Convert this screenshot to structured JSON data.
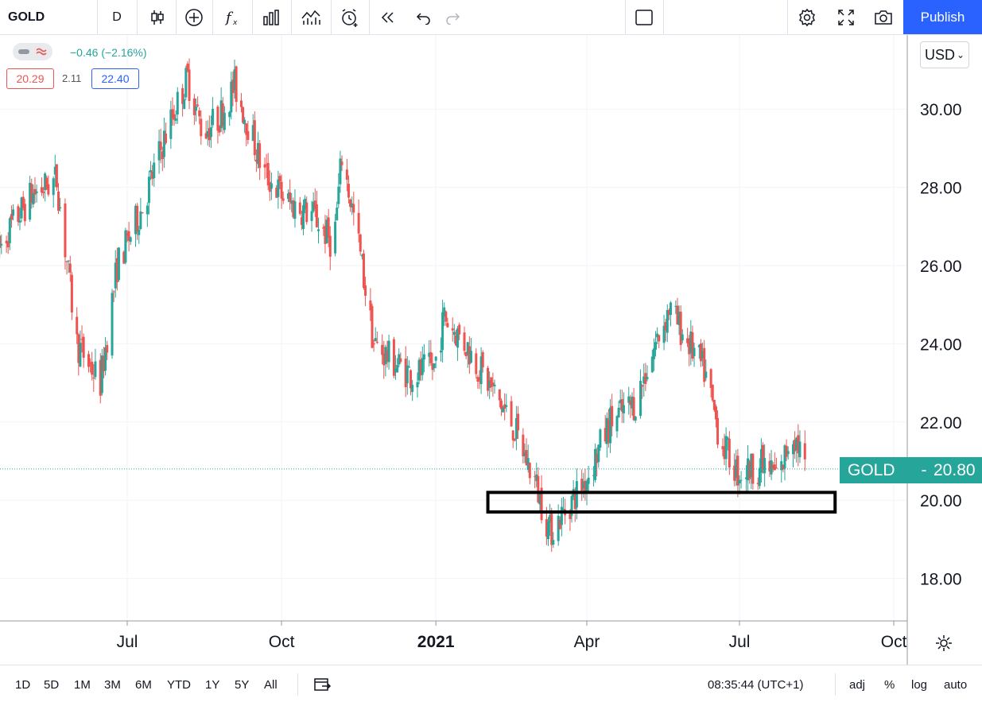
{
  "toolbar": {
    "symbol": "GOLD",
    "interval": "D",
    "icons": [
      "candles-icon",
      "add-indicator-icon",
      "fx-icon",
      "bar-chart-icon",
      "compare-icon",
      "alert-icon",
      "replay-icon",
      "undo-icon",
      "redo-icon",
      "layout-icon",
      "gear-icon",
      "fullscreen-icon",
      "camera-icon"
    ],
    "publish_label": "Publish"
  },
  "legend": {
    "change": "−0.46 (−2.16%)",
    "low": "20.29",
    "range": "2.11",
    "high": "22.40"
  },
  "currency": "USD",
  "price_tag": {
    "name": "GOLD",
    "dash": "-",
    "value": "20.80"
  },
  "bottombar": {
    "ranges": [
      "1D",
      "5D",
      "1M",
      "3M",
      "6M",
      "YTD",
      "1Y",
      "5Y",
      "All"
    ],
    "time": "08:35:44 (UTC+1)",
    "options": [
      "adj",
      "%",
      "log",
      "auto"
    ]
  },
  "colors": {
    "up": "#26a69a",
    "down": "#ef5350",
    "accent": "#2962ff"
  },
  "chart_data": {
    "type": "candlestick",
    "title": "",
    "symbol": "GOLD",
    "x_tick_labels": [
      "Jul",
      "Oct",
      "2021",
      "Apr",
      "Jul",
      "Oct"
    ],
    "y_tick_labels": [
      "18.00",
      "20.00",
      "22.00",
      "24.00",
      "26.00",
      "28.00",
      "30.00"
    ],
    "ylim": [
      17.0,
      32.0
    ],
    "grid": true,
    "last_price": 20.8,
    "annotation": {
      "type": "rectangle",
      "y_range": [
        19.7,
        20.2
      ],
      "x_range": [
        "2021-02-01",
        "2021-08-27"
      ]
    },
    "price_path": [
      [
        "2020-04-01",
        25.0
      ],
      [
        "2020-04-20",
        26.8
      ],
      [
        "2020-05-05",
        27.8
      ],
      [
        "2020-05-20",
        28.2
      ],
      [
        "2020-06-01",
        24.0
      ],
      [
        "2020-06-15",
        23.0
      ],
      [
        "2020-06-25",
        26.0
      ],
      [
        "2020-07-10",
        27.5
      ],
      [
        "2020-07-25",
        29.5
      ],
      [
        "2020-08-06",
        30.8
      ],
      [
        "2020-08-15",
        29.4
      ],
      [
        "2020-08-25",
        29.8
      ],
      [
        "2020-09-03",
        30.6
      ],
      [
        "2020-09-12",
        29.5
      ],
      [
        "2020-09-20",
        28.4
      ],
      [
        "2020-10-05",
        27.6
      ],
      [
        "2020-10-20",
        27.3
      ],
      [
        "2020-11-01",
        26.5
      ],
      [
        "2020-11-06",
        28.8
      ],
      [
        "2020-11-15",
        26.8
      ],
      [
        "2020-11-25",
        24.0
      ],
      [
        "2020-12-05",
        23.6
      ],
      [
        "2020-12-18",
        23.2
      ],
      [
        "2020-12-31",
        23.4
      ],
      [
        "2021-01-06",
        24.7
      ],
      [
        "2021-01-20",
        23.9
      ],
      [
        "2021-02-01",
        23.0
      ],
      [
        "2021-02-15",
        22.0
      ],
      [
        "2021-03-01",
        20.5
      ],
      [
        "2021-03-10",
        19.2
      ],
      [
        "2021-03-20",
        19.8
      ],
      [
        "2021-04-01",
        20.6
      ],
      [
        "2021-04-15",
        22.0
      ],
      [
        "2021-04-30",
        22.5
      ],
      [
        "2021-05-12",
        24.0
      ],
      [
        "2021-05-20",
        24.9
      ],
      [
        "2021-06-01",
        24.0
      ],
      [
        "2021-06-10",
        23.3
      ],
      [
        "2021-06-20",
        21.5
      ],
      [
        "2021-06-30",
        20.7
      ],
      [
        "2021-07-15",
        20.9
      ],
      [
        "2021-07-25",
        20.6
      ],
      [
        "2021-08-01",
        21.8
      ],
      [
        "2021-08-06",
        21.3
      ],
      [
        "2021-08-09",
        20.8
      ]
    ]
  }
}
